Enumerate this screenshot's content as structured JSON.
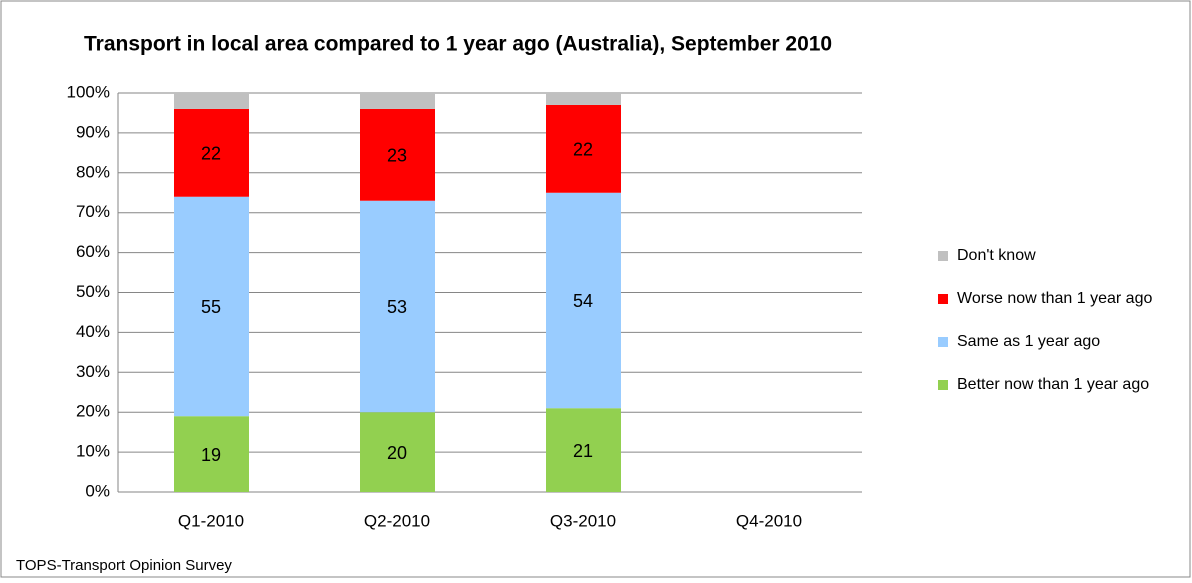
{
  "chart_data": {
    "type": "stacked_bar",
    "title": "Transport in local area compared to 1 year ago (Australia), September 2010",
    "footer": "TOPS-Transport Opinion Survey",
    "categories": [
      "Q1-2010",
      "Q2-2010",
      "Q3-2010",
      "Q4-2010"
    ],
    "series": [
      {
        "name": "Better now than 1 year ago",
        "color": "#92d050",
        "values": [
          19,
          20,
          21,
          null
        ]
      },
      {
        "name": "Same as 1 year ago",
        "color": "#99ccff",
        "values": [
          55,
          53,
          54,
          null
        ]
      },
      {
        "name": "Worse now than 1 year ago",
        "color": "#ff0000",
        "values": [
          22,
          23,
          22,
          null
        ]
      },
      {
        "name": "Don't know",
        "color": "#c0c0c0",
        "values": [
          4,
          4,
          3,
          null
        ]
      }
    ],
    "ylim": [
      0,
      100
    ],
    "yticks": [
      {
        "value": 0,
        "label": "0%"
      },
      {
        "value": 10,
        "label": "10%"
      },
      {
        "value": 20,
        "label": "20%"
      },
      {
        "value": 30,
        "label": "30%"
      },
      {
        "value": 40,
        "label": "40%"
      },
      {
        "value": 50,
        "label": "50%"
      },
      {
        "value": 60,
        "label": "60%"
      },
      {
        "value": 70,
        "label": "70%"
      },
      {
        "value": 80,
        "label": "80%"
      },
      {
        "value": 90,
        "label": "90%"
      },
      {
        "value": 100,
        "label": "100%"
      }
    ],
    "grid": true,
    "legend": "right"
  }
}
